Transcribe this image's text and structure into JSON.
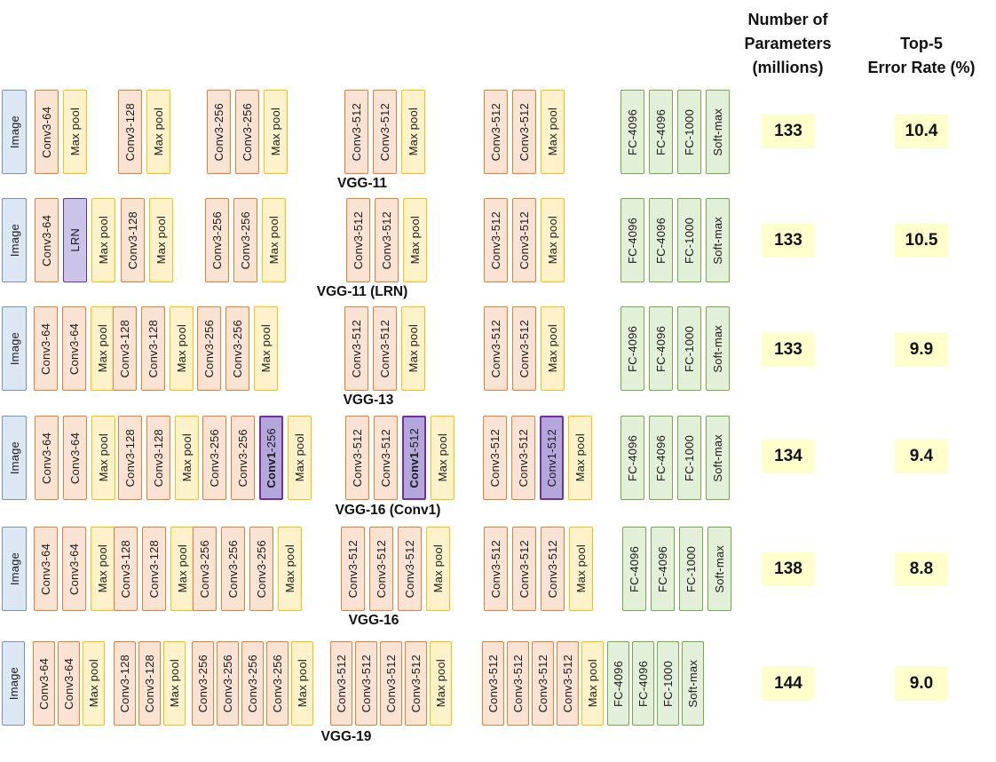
{
  "headers": {
    "params": "Number of\nParameters\n(millions)",
    "error": "Top-5\nError Rate (%)"
  },
  "palette": {
    "image_fill": "#dbe8f4",
    "image_border": "#7694b3",
    "conv_fill": "#fbe3d4",
    "conv_border": "#ed7d31",
    "pool_fill": "#fef2cb",
    "pool_border": "#fdc101",
    "lrn_fill": "#ccc3e9",
    "conv1_fill": "#b4a7dc",
    "purple_border": "#7030a0",
    "fc_fill": "#e2efd9",
    "fc_border": "#70ad47",
    "value_highlight": "#ffffcc"
  },
  "rows": [
    {
      "name": "VGG-11",
      "params": "133",
      "error": "10.4",
      "segments": [
        [
          {
            "label": "Image",
            "type": "image"
          }
        ],
        [
          {
            "label": "Conv3-64",
            "type": "conv"
          },
          {
            "label": "Max pool",
            "type": "pool"
          }
        ],
        [
          {
            "label": "Conv3-128",
            "type": "conv"
          },
          {
            "label": "Max pool",
            "type": "pool"
          }
        ],
        [
          {
            "label": "Conv3-256",
            "type": "conv"
          },
          {
            "label": "Conv3-256",
            "type": "conv"
          },
          {
            "label": "Max pool",
            "type": "pool"
          }
        ],
        [
          {
            "label": "Conv3-512",
            "type": "conv"
          },
          {
            "label": "Conv3-512",
            "type": "conv"
          },
          {
            "label": "Max pool",
            "type": "pool"
          }
        ],
        [
          {
            "label": "Conv3-512",
            "type": "conv"
          },
          {
            "label": "Conv3-512",
            "type": "conv"
          },
          {
            "label": "Max pool",
            "type": "pool"
          }
        ],
        [
          {
            "label": "FC-4096",
            "type": "fc"
          },
          {
            "label": "FC-4096",
            "type": "fc"
          },
          {
            "label": "FC-1000",
            "type": "fc"
          },
          {
            "label": "Soft-max",
            "type": "fc"
          }
        ]
      ]
    },
    {
      "name": "VGG-11 (LRN)",
      "params": "133",
      "error": "10.5",
      "segments": [
        [
          {
            "label": "Image",
            "type": "image"
          }
        ],
        [
          {
            "label": "Conv3-64",
            "type": "conv"
          },
          {
            "label": "LRN",
            "type": "lrn"
          },
          {
            "label": "Max pool",
            "type": "pool"
          }
        ],
        [
          {
            "label": "Conv3-128",
            "type": "conv"
          },
          {
            "label": "Max pool",
            "type": "pool"
          }
        ],
        [
          {
            "label": "Conv3-256",
            "type": "conv"
          },
          {
            "label": "Conv3-256",
            "type": "conv"
          },
          {
            "label": "Max pool",
            "type": "pool"
          }
        ],
        [
          {
            "label": "Conv3-512",
            "type": "conv"
          },
          {
            "label": "Conv3-512",
            "type": "conv"
          },
          {
            "label": "Max pool",
            "type": "pool"
          }
        ],
        [
          {
            "label": "Conv3-512",
            "type": "conv"
          },
          {
            "label": "Conv3-512",
            "type": "conv"
          },
          {
            "label": "Max pool",
            "type": "pool"
          }
        ],
        [
          {
            "label": "FC-4096",
            "type": "fc"
          },
          {
            "label": "FC-4096",
            "type": "fc"
          },
          {
            "label": "FC-1000",
            "type": "fc"
          },
          {
            "label": "Soft-max",
            "type": "fc"
          }
        ]
      ]
    },
    {
      "name": "VGG-13",
      "params": "133",
      "error": "9.9",
      "segments": [
        [
          {
            "label": "Image",
            "type": "image"
          }
        ],
        [
          {
            "label": "Conv3-64",
            "type": "conv"
          },
          {
            "label": "Conv3-64",
            "type": "conv"
          },
          {
            "label": "Max pool",
            "type": "pool"
          }
        ],
        [
          {
            "label": "Conv3-128",
            "type": "conv"
          },
          {
            "label": "Conv3-128",
            "type": "conv"
          },
          {
            "label": "Max pool",
            "type": "pool"
          }
        ],
        [
          {
            "label": "Conv3-256",
            "type": "conv"
          },
          {
            "label": "Conv3-256",
            "type": "conv"
          },
          {
            "label": "Max pool",
            "type": "pool"
          }
        ],
        [
          {
            "label": "Conv3-512",
            "type": "conv"
          },
          {
            "label": "Conv3-512",
            "type": "conv"
          },
          {
            "label": "Max pool",
            "type": "pool"
          }
        ],
        [
          {
            "label": "Conv3-512",
            "type": "conv"
          },
          {
            "label": "Conv3-512",
            "type": "conv"
          },
          {
            "label": "Max pool",
            "type": "pool"
          }
        ],
        [
          {
            "label": "FC-4096",
            "type": "fc"
          },
          {
            "label": "FC-4096",
            "type": "fc"
          },
          {
            "label": "FC-1000",
            "type": "fc"
          },
          {
            "label": "Soft-max",
            "type": "fc"
          }
        ]
      ]
    },
    {
      "name": "VGG-16 (Conv1)",
      "params": "134",
      "error": "9.4",
      "segments": [
        [
          {
            "label": "Image",
            "type": "image"
          }
        ],
        [
          {
            "label": "Conv3-64",
            "type": "conv"
          },
          {
            "label": "Conv3-64",
            "type": "conv"
          },
          {
            "label": "Max pool",
            "type": "pool"
          }
        ],
        [
          {
            "label": "Conv3-128",
            "type": "conv"
          },
          {
            "label": "Conv3-128",
            "type": "conv"
          },
          {
            "label": "Max pool",
            "type": "pool"
          }
        ],
        [
          {
            "label": "Conv3-256",
            "type": "conv"
          },
          {
            "label": "Conv3-256",
            "type": "conv"
          },
          {
            "label": "Conv1-256",
            "type": "conv1",
            "bold": true
          },
          {
            "label": "Max pool",
            "type": "pool"
          }
        ],
        [
          {
            "label": "Conv3-512",
            "type": "conv"
          },
          {
            "label": "Conv3-512",
            "type": "conv"
          },
          {
            "label": "Conv1-512",
            "type": "conv1",
            "bold": true
          },
          {
            "label": "Max pool",
            "type": "pool"
          }
        ],
        [
          {
            "label": "Conv3-512",
            "type": "conv"
          },
          {
            "label": "Conv3-512",
            "type": "conv"
          },
          {
            "label": "Conv1-512",
            "type": "conv1"
          },
          {
            "label": "Max pool",
            "type": "pool"
          }
        ],
        [
          {
            "label": "FC-4096",
            "type": "fc"
          },
          {
            "label": "FC-4096",
            "type": "fc"
          },
          {
            "label": "FC-1000",
            "type": "fc"
          },
          {
            "label": "Soft-max",
            "type": "fc"
          }
        ]
      ]
    },
    {
      "name": "VGG-16",
      "params": "138",
      "error": "8.8",
      "segments": [
        [
          {
            "label": "Image",
            "type": "image"
          }
        ],
        [
          {
            "label": "Conv3-64",
            "type": "conv"
          },
          {
            "label": "Conv3-64",
            "type": "conv"
          },
          {
            "label": "Max pool",
            "type": "pool"
          }
        ],
        [
          {
            "label": "Conv3-128",
            "type": "conv"
          },
          {
            "label": "Conv3-128",
            "type": "conv"
          },
          {
            "label": "Max pool",
            "type": "pool"
          }
        ],
        [
          {
            "label": "Conv3-256",
            "type": "conv"
          },
          {
            "label": "Conv3-256",
            "type": "conv"
          },
          {
            "label": "Conv3-256",
            "type": "conv"
          },
          {
            "label": "Max pool",
            "type": "pool"
          }
        ],
        [
          {
            "label": "Conv3-512",
            "type": "conv"
          },
          {
            "label": "Conv3-512",
            "type": "conv"
          },
          {
            "label": "Conv3-512",
            "type": "conv"
          },
          {
            "label": "Max pool",
            "type": "pool"
          }
        ],
        [
          {
            "label": "Conv3-512",
            "type": "conv"
          },
          {
            "label": "Conv3-512",
            "type": "conv"
          },
          {
            "label": "Conv3-512",
            "type": "conv"
          },
          {
            "label": "Max pool",
            "type": "pool"
          }
        ],
        [
          {
            "label": "FC-4096",
            "type": "fc"
          },
          {
            "label": "FC-4096",
            "type": "fc"
          },
          {
            "label": "FC-1000",
            "type": "fc"
          },
          {
            "label": "Soft-max",
            "type": "fc"
          }
        ]
      ]
    },
    {
      "name": "VGG-19",
      "params": "144",
      "error": "9.0",
      "segments": [
        [
          {
            "label": "Image",
            "type": "image"
          }
        ],
        [
          {
            "label": "Conv3-64",
            "type": "conv"
          },
          {
            "label": "Conv3-64",
            "type": "conv"
          },
          {
            "label": "Max pool",
            "type": "pool"
          }
        ],
        [
          {
            "label": "Conv3-128",
            "type": "conv"
          },
          {
            "label": "Conv3-128",
            "type": "conv"
          },
          {
            "label": "Max pool",
            "type": "pool"
          }
        ],
        [
          {
            "label": "Conv3-256",
            "type": "conv"
          },
          {
            "label": "Conv3-256",
            "type": "conv"
          },
          {
            "label": "Conv3-256",
            "type": "conv"
          },
          {
            "label": "Conv3-256",
            "type": "conv"
          },
          {
            "label": "Max pool",
            "type": "pool"
          }
        ],
        [
          {
            "label": "Conv3-512",
            "type": "conv"
          },
          {
            "label": "Conv3-512",
            "type": "conv"
          },
          {
            "label": "Conv3-512",
            "type": "conv"
          },
          {
            "label": "Conv3-512",
            "type": "conv"
          },
          {
            "label": "Max pool",
            "type": "pool"
          }
        ],
        [
          {
            "label": "Conv3-512",
            "type": "conv"
          },
          {
            "label": "Conv3-512",
            "type": "conv"
          },
          {
            "label": "Conv3-512",
            "type": "conv"
          },
          {
            "label": "Conv3-512",
            "type": "conv"
          },
          {
            "label": "Max pool",
            "type": "pool"
          }
        ],
        [
          {
            "label": "FC-4096",
            "type": "fc"
          },
          {
            "label": "FC-4096",
            "type": "fc"
          },
          {
            "label": "FC-1000",
            "type": "fc"
          },
          {
            "label": "Soft-max",
            "type": "fc"
          }
        ]
      ]
    }
  ]
}
